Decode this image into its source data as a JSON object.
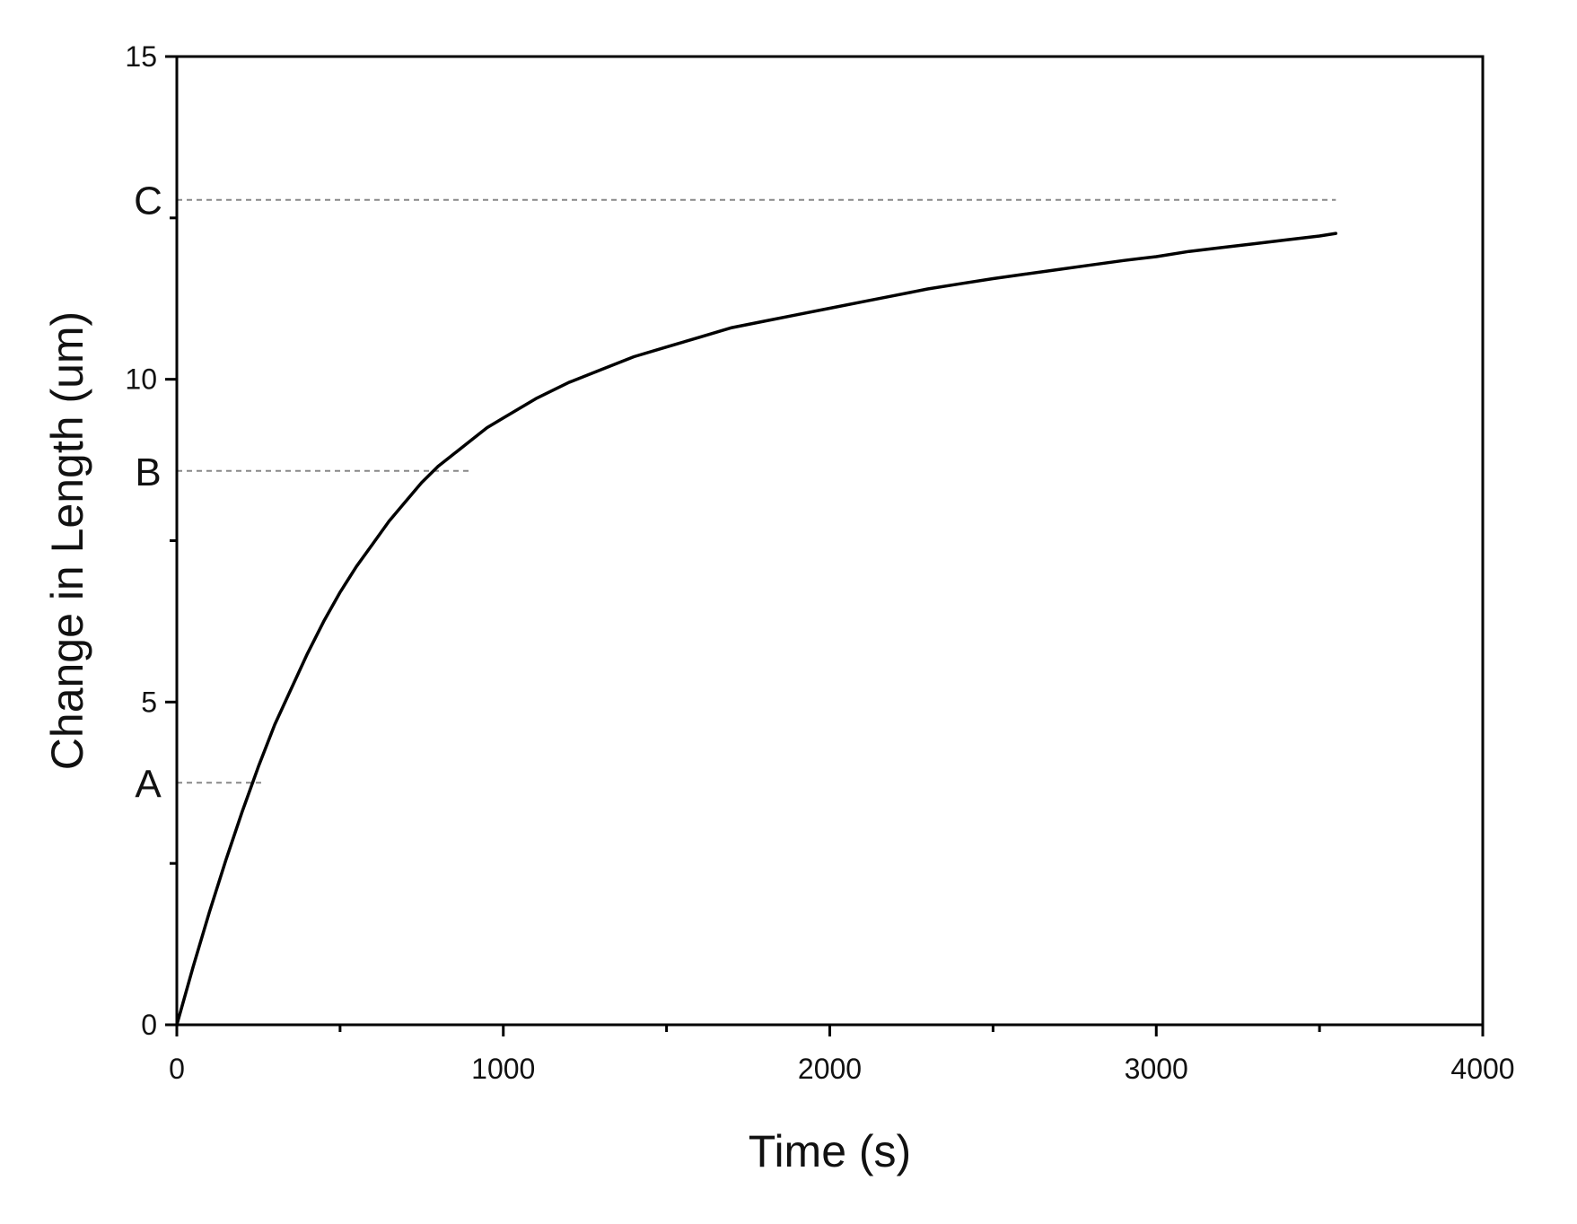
{
  "chart_data": {
    "type": "line",
    "title": "",
    "xlabel": "Time (s)",
    "ylabel": "Change in Length (um)",
    "xlim": [
      0,
      4000
    ],
    "ylim": [
      0,
      15
    ],
    "x_major_ticks": [
      0,
      1000,
      2000,
      3000,
      4000
    ],
    "x_major_tick_labels": [
      "0",
      "1000",
      "2000",
      "3000",
      "4000"
    ],
    "x_minor_ticks": [
      500,
      1500,
      2500,
      3500
    ],
    "y_major_ticks": [
      0,
      5,
      10,
      15
    ],
    "y_major_tick_labels": [
      "0",
      "5",
      "10",
      "15"
    ],
    "y_minor_ticks": [
      2.5,
      7.5,
      12.5
    ],
    "grid": false,
    "legend": "none",
    "line_color": "#000000",
    "reference_line_color": "#888888",
    "series": [
      {
        "x": [
          0,
          50,
          100,
          150,
          200,
          250,
          300,
          350,
          400,
          450,
          500,
          550,
          600,
          650,
          700,
          750,
          800,
          850,
          900,
          950,
          1000,
          1100,
          1200,
          1300,
          1400,
          1500,
          1600,
          1700,
          1800,
          1900,
          2000,
          2100,
          2200,
          2300,
          2400,
          2500,
          2600,
          2700,
          2800,
          2900,
          3000,
          3100,
          3200,
          3300,
          3400,
          3500,
          3550
        ],
        "y": [
          0,
          0.9,
          1.75,
          2.55,
          3.3,
          4.0,
          4.65,
          5.2,
          5.75,
          6.25,
          6.7,
          7.1,
          7.45,
          7.8,
          8.1,
          8.4,
          8.65,
          8.85,
          9.05,
          9.25,
          9.4,
          9.7,
          9.95,
          10.15,
          10.35,
          10.5,
          10.65,
          10.8,
          10.9,
          11.0,
          11.1,
          11.2,
          11.3,
          11.4,
          11.48,
          11.56,
          11.63,
          11.7,
          11.77,
          11.84,
          11.9,
          11.98,
          12.04,
          12.1,
          12.16,
          12.22,
          12.26
        ]
      }
    ],
    "annotations": [
      {
        "label": "A",
        "y": 3.75,
        "x_end": 270
      },
      {
        "label": "B",
        "y": 8.58,
        "x_end": 900
      },
      {
        "label": "C",
        "y": 12.78,
        "x_end": 3550
      }
    ]
  }
}
